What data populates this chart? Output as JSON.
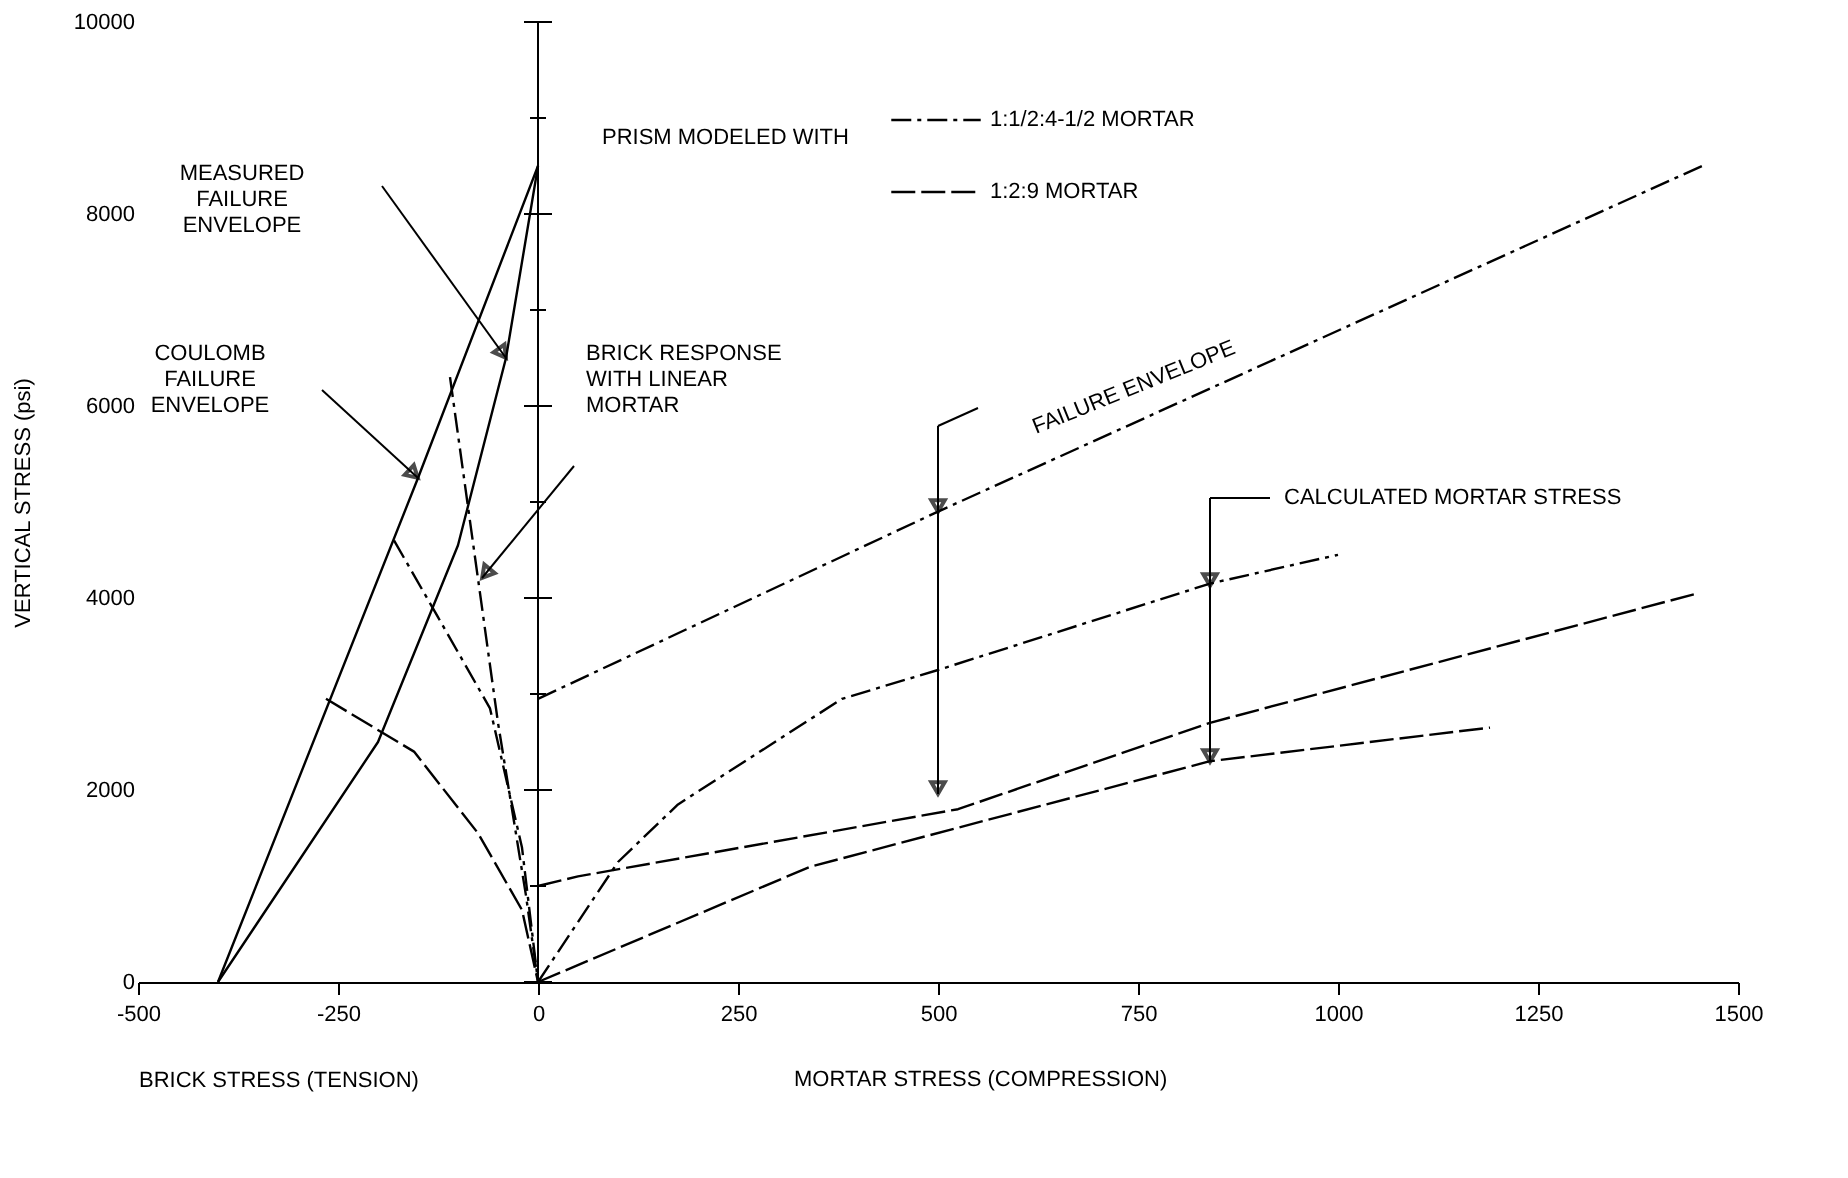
{
  "chart_data": {
    "type": "line",
    "xlabel": "BRICK STRESS (TENSION)",
    "ylabel": "VERTICAL STRESS (psi)",
    "legend_title": "PRISM MODELED WITH",
    "legend": "top right",
    "grid": false,
    "xlim": [
      -500,
      1500
    ],
    "xticks": [
      -500,
      -250,
      0,
      250,
      500,
      750,
      1000,
      1250,
      1500
    ],
    "ylim": [
      0,
      10000
    ],
    "yticks": [
      0,
      {
        "value": 1000,
        "label": null
      },
      2000,
      {
        "value": 3000,
        "label": null
      },
      4000,
      {
        "value": 5000,
        "label": null
      },
      6000,
      {
        "value": 7000,
        "label": null
      },
      8000,
      {
        "value": 9000,
        "label": null
      },
      10000
    ],
    "ref_lines": [
      {
        "axis": "x",
        "value": 0,
        "color": "#000000"
      }
    ],
    "annotations": [
      "MORTAR STRESS (COMPRESSION)",
      "MEASURED\nFAILURE\nENVELOPE",
      "COULOMB\nFAILURE\nENVELOPE",
      "BRICK RESPONSE\nWITH LINEAR\nMORTAR",
      "FAILURE ENVELOPE",
      "CALCULATED MORTAR STRESS"
    ],
    "series": [
      {
        "color": "#000000",
        "line_style": "solid",
        "x": [
          -400,
          -150,
          0
        ],
        "values": [
          0,
          5250,
          8500
        ]
      },
      {
        "color": "#000000",
        "line_style": "solid",
        "x": [
          -400,
          -200,
          -100,
          -40,
          0
        ],
        "values": [
          0,
          2500,
          4550,
          6500,
          8500
        ]
      },
      {
        "color": "#000000",
        "line_style": "dashdot",
        "x": [
          -110,
          -50,
          -15,
          0
        ],
        "values": [
          6300,
          2700,
          900,
          0
        ]
      },
      {
        "color": "#000000",
        "line_style": "dashdot",
        "x": [
          -180,
          -125,
          -60,
          -20,
          0
        ],
        "values": [
          4600,
          3800,
          2850,
          1400,
          0
        ]
      },
      {
        "color": "#000000",
        "line_style": "dashed",
        "x": [
          -265,
          -155,
          -75,
          -20,
          0
        ],
        "values": [
          2950,
          2400,
          1550,
          750,
          0
        ]
      },
      {
        "name": "1:1/2:4-1/2 MORTAR",
        "color": "#000000",
        "line_style": "dashdot",
        "x": [
          0,
          500,
          1455
        ],
        "values": [
          2950,
          4900,
          8500
        ]
      },
      {
        "color": "#000000",
        "line_style": "dashdot",
        "x": [
          0,
          100,
          175,
          380,
          500,
          840,
          1000
        ],
        "values": [
          0,
          1250,
          1850,
          2950,
          3250,
          4150,
          4450
        ]
      },
      {
        "name": "1:2:9 MORTAR",
        "color": "#000000",
        "line_style": "dashed",
        "x": [
          0,
          50,
          525,
          840,
          1450
        ],
        "values": [
          1000,
          1100,
          1800,
          2700,
          4050
        ]
      },
      {
        "color": "#000000",
        "line_style": "dashed",
        "x": [
          0,
          340,
          840,
          1190
        ],
        "values": [
          0,
          1200,
          2300,
          2650
        ]
      }
    ]
  }
}
